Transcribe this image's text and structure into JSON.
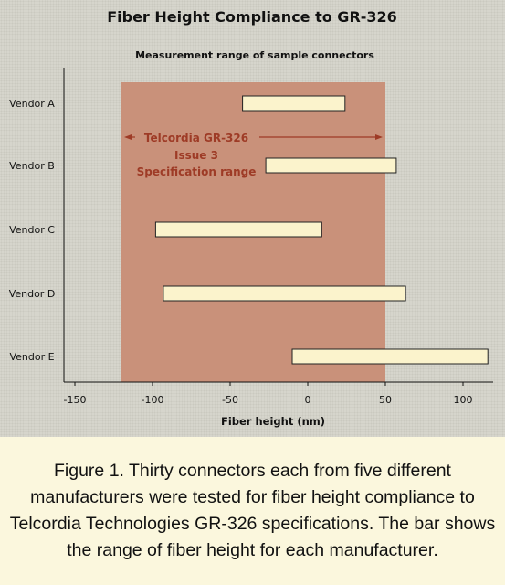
{
  "chart_data": {
    "type": "bar",
    "orientation": "horizontal-range",
    "title": "Fiber Height Compliance to GR-326",
    "subtitle": "Measurement range of sample connectors",
    "xlabel": "Fiber height (nm)",
    "xlim": [
      -150,
      120
    ],
    "xticks": [
      "-150",
      "-100",
      "-50",
      "0",
      "50",
      "100"
    ],
    "tick_values": [
      -150,
      -100,
      -50,
      0,
      50,
      100
    ],
    "categories": [
      "Vendor A",
      "Vendor B",
      "Vendor C",
      "Vendor D",
      "Vendor E"
    ],
    "ranges": [
      {
        "low": -42,
        "high": 24
      },
      {
        "low": -27,
        "high": 57
      },
      {
        "low": -98,
        "high": 9
      },
      {
        "low": -93,
        "high": 63
      },
      {
        "low": -10,
        "high": 116
      }
    ],
    "spec_range": {
      "low": -120,
      "high": 50
    },
    "spec_annotation": [
      "Telcordia GR-326",
      "Issue 3",
      "Specification range"
    ],
    "colors": {
      "spec_band": "#c9917a",
      "bar_fill": "#fbf3cc",
      "annotation": "#9e3b26",
      "background": "#d6d5cc"
    }
  },
  "caption": "Figure 1. Thirty connectors each from five different manufacturers were tested for fiber height compliance to Telcordia Technologies GR-326 specifications. The bar shows the range of fiber height for each manufacturer."
}
